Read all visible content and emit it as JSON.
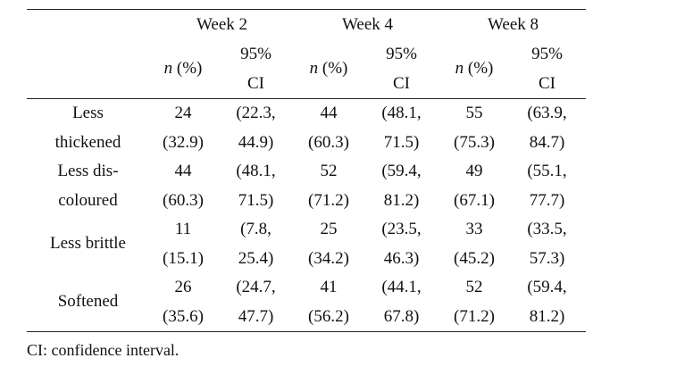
{
  "table": {
    "groups": [
      "Week 2",
      "Week 4",
      "Week 8"
    ],
    "n_label": "n",
    "pct_label": " (%)",
    "ci_line1": "95%",
    "ci_line2": "CI",
    "rows": [
      {
        "label": [
          "Less",
          "thickened"
        ],
        "cells": [
          [
            "24",
            "(32.9)"
          ],
          [
            "(22.3,",
            "44.9)"
          ],
          [
            "44",
            "(60.3)"
          ],
          [
            "(48.1,",
            "71.5)"
          ],
          [
            "55",
            "(75.3)"
          ],
          [
            "(63.9,",
            "84.7)"
          ]
        ]
      },
      {
        "label": [
          "Less dis-",
          "coloured"
        ],
        "cells": [
          [
            "44",
            "(60.3)"
          ],
          [
            "(48.1,",
            "71.5)"
          ],
          [
            "52",
            "(71.2)"
          ],
          [
            "(59.4,",
            "81.2)"
          ],
          [
            "49",
            "(67.1)"
          ],
          [
            "(55.1,",
            "77.7)"
          ]
        ]
      },
      {
        "label": [
          "Less brittle",
          ""
        ],
        "cells": [
          [
            "11",
            "(15.1)"
          ],
          [
            "(7.8,",
            "25.4)"
          ],
          [
            "25",
            "(34.2)"
          ],
          [
            "(23.5,",
            "46.3)"
          ],
          [
            "33",
            "(45.2)"
          ],
          [
            "(33.5,",
            "57.3)"
          ]
        ]
      },
      {
        "label": [
          "Softened",
          ""
        ],
        "cells": [
          [
            "26",
            "(35.6)"
          ],
          [
            "(24.7,",
            "47.7)"
          ],
          [
            "41",
            "(56.2)"
          ],
          [
            "(44.1,",
            "67.8)"
          ],
          [
            "52",
            "(71.2)"
          ],
          [
            "(59.4,",
            "81.2)"
          ]
        ]
      }
    ]
  },
  "footnote": "CI: confidence interval."
}
